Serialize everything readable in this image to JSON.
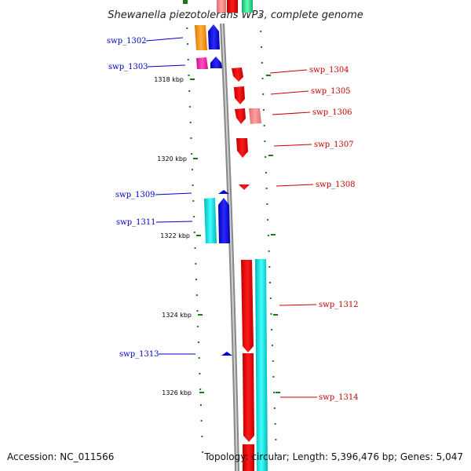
{
  "title": "Shewanella piezotolerans WP3, complete genome",
  "accession": "Accession: NC_011566",
  "topology": "Topology: circular; Length: 5,396,476 bp; Genes: 5,047",
  "colors": {
    "backbone": "#888888",
    "tick": "#1a7a1a",
    "blue_label": "#0000c8",
    "red_label": "#c80000"
  },
  "kbp_labels": [
    "1318 kbp",
    "1320 kbp",
    "1322 kbp",
    "1324 kbp",
    "1326 kbp"
  ],
  "genes_left": [
    {
      "name": "swp_1302",
      "color": "#0000c8"
    },
    {
      "name": "swp_1303",
      "color": "#0000c8"
    },
    {
      "name": "swp_1309",
      "color": "#0000c8"
    },
    {
      "name": "swp_1311",
      "color": "#0000c8"
    },
    {
      "name": "swp_1313",
      "color": "#0000c8"
    }
  ],
  "genes_right": [
    {
      "name": "swp_1304",
      "color": "#c80000"
    },
    {
      "name": "swp_1305",
      "color": "#c80000"
    },
    {
      "name": "swp_1306",
      "color": "#c80000"
    },
    {
      "name": "swp_1307",
      "color": "#c80000"
    },
    {
      "name": "swp_1308",
      "color": "#c80000"
    },
    {
      "name": "swp_1312",
      "color": "#c80000"
    },
    {
      "name": "swp_1314",
      "color": "#c80000"
    }
  ]
}
